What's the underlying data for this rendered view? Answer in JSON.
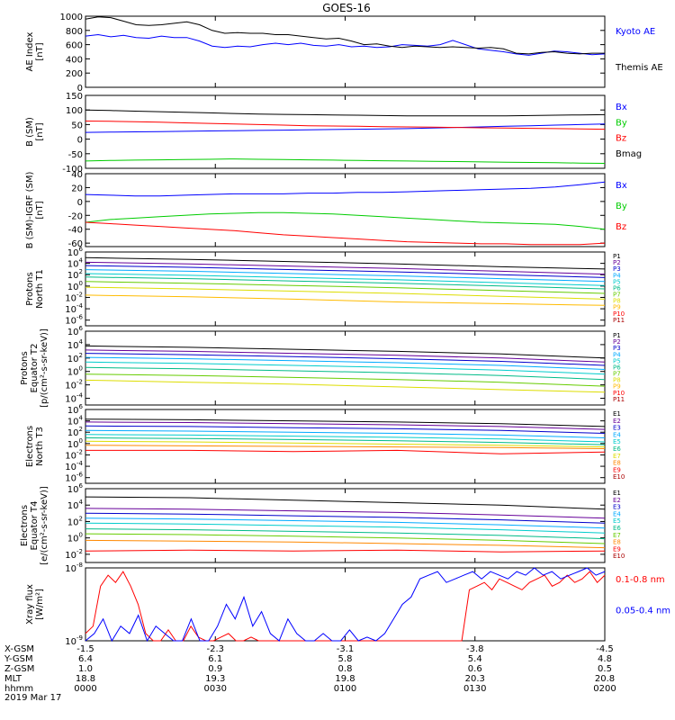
{
  "title": "GOES-16",
  "colors": {
    "black": "#000000",
    "blue": "#0000ff",
    "green": "#00cc00",
    "red": "#ff0000",
    "navy": "#000080",
    "purple": "#660099",
    "blue2": "#0000cc",
    "cyan1": "#00aaff",
    "cyan2": "#00cccc",
    "teal": "#00bb88",
    "lime": "#66cc00",
    "yellow": "#dddd00",
    "gold": "#ffbb00",
    "orange": "#ff8800",
    "darkred": "#aa0000"
  },
  "chart_data": [
    {
      "type": "line",
      "ylabel": "AE Index\n[nT]",
      "ylim": [
        0,
        1000
      ],
      "yticks": [
        "0",
        "200",
        "400",
        "600",
        "800",
        "1000"
      ],
      "series": [
        {
          "name": "Kyoto AE",
          "color": "#0000ff",
          "values": [
            720,
            740,
            710,
            730,
            700,
            690,
            720,
            700,
            700,
            650,
            580,
            560,
            580,
            570,
            600,
            620,
            600,
            620,
            590,
            580,
            600,
            570,
            580,
            560,
            570,
            600,
            590,
            580,
            600,
            660,
            600,
            540,
            520,
            500,
            470,
            450,
            480,
            510,
            500,
            480,
            460,
            470
          ]
        },
        {
          "name": "Themis AE",
          "color": "#000000",
          "values": [
            960,
            990,
            980,
            930,
            880,
            870,
            880,
            900,
            920,
            880,
            800,
            760,
            770,
            760,
            760,
            740,
            740,
            720,
            700,
            680,
            690,
            650,
            600,
            610,
            580,
            560,
            580,
            570,
            560,
            570,
            560,
            550,
            560,
            540,
            480,
            470,
            490,
            500,
            480,
            470,
            480,
            480
          ]
        }
      ]
    },
    {
      "type": "line",
      "ylabel": "B (SM)\n[nT]",
      "ylim": [
        -100,
        150
      ],
      "yticks": [
        "-100",
        "-50",
        "0",
        "50",
        "100",
        "150"
      ],
      "series": [
        {
          "name": "Bx",
          "color": "#0000ff",
          "values": [
            23,
            24,
            25,
            26,
            27,
            28,
            29,
            30,
            31,
            32,
            33,
            34,
            35,
            36,
            38,
            40,
            42,
            44,
            46,
            48,
            50,
            52
          ]
        },
        {
          "name": "By",
          "color": "#00cc00",
          "values": [
            -75,
            -73,
            -72,
            -71,
            -70,
            -69,
            -68,
            -69,
            -70,
            -71,
            -72,
            -73,
            -74,
            -75,
            -76,
            -77,
            -78,
            -79,
            -80,
            -81,
            -82,
            -83
          ]
        },
        {
          "name": "Bz",
          "color": "#ff0000",
          "values": [
            62,
            61,
            60,
            58,
            56,
            54,
            52,
            50,
            48,
            46,
            45,
            44,
            43,
            42,
            41,
            40,
            39,
            38,
            37,
            36,
            35,
            34
          ]
        },
        {
          "name": "Bmag",
          "color": "#000000",
          "values": [
            100,
            98,
            96,
            94,
            92,
            90,
            88,
            86,
            85,
            84,
            83,
            82,
            81,
            80,
            80,
            80,
            80,
            80,
            81,
            82,
            83,
            84
          ]
        }
      ]
    },
    {
      "type": "line",
      "ylabel": "B (SM)-IGRF (SM)\n[nT]",
      "ylim": [
        -65,
        40
      ],
      "yticks": [
        "-60",
        "-40",
        "-20",
        "0",
        "20",
        "40"
      ],
      "series": [
        {
          "name": "Bx",
          "color": "#0000ff",
          "values": [
            10,
            9,
            8,
            8,
            9,
            10,
            11,
            11,
            11,
            12,
            12,
            13,
            13,
            14,
            15,
            16,
            17,
            18,
            19,
            21,
            24,
            28
          ]
        },
        {
          "name": "By",
          "color": "#00cc00",
          "values": [
            -30,
            -26,
            -24,
            -22,
            -20,
            -18,
            -17,
            -16,
            -16,
            -17,
            -18,
            -20,
            -22,
            -24,
            -26,
            -28,
            -30,
            -31,
            -32,
            -33,
            -36,
            -40
          ]
        },
        {
          "name": "Bz",
          "color": "#ff0000",
          "values": [
            -30,
            -32,
            -34,
            -36,
            -38,
            -40,
            -42,
            -45,
            -48,
            -50,
            -52,
            -54,
            -56,
            -58,
            -59,
            -60,
            -61,
            -61,
            -62,
            -62,
            -62,
            -60
          ]
        }
      ]
    },
    {
      "type": "line",
      "ylabel": "Protons\nNorth T1",
      "yscale": "log",
      "ylim": [
        1e-07,
        1000000.0
      ],
      "yticks": [
        "10^6",
        "10^4",
        "10^2",
        "10^0",
        "10^-2",
        "10^-4",
        "10^-6"
      ],
      "series": [
        {
          "name": "P1",
          "color": "#000000",
          "values": [
            5.0,
            4.7,
            4.3,
            3.9,
            3.4,
            3.0
          ]
        },
        {
          "name": "P2",
          "color": "#660099",
          "values": [
            4.2,
            3.9,
            3.5,
            3.1,
            2.6,
            2.1
          ]
        },
        {
          "name": "P3",
          "color": "#0000cc",
          "values": [
            3.6,
            3.3,
            2.9,
            2.5,
            2.0,
            1.5
          ]
        },
        {
          "name": "P4",
          "color": "#00aaff",
          "values": [
            2.9,
            2.6,
            2.2,
            1.8,
            1.3,
            0.8
          ]
        },
        {
          "name": "P5",
          "color": "#00cccc",
          "values": [
            2.2,
            1.9,
            1.5,
            1.1,
            0.6,
            0.1
          ]
        },
        {
          "name": "P6",
          "color": "#00bb88",
          "values": [
            1.6,
            1.3,
            0.9,
            0.5,
            0.0,
            -0.5
          ]
        },
        {
          "name": "P7",
          "color": "#66cc00",
          "values": [
            0.8,
            0.5,
            0.1,
            -0.3,
            -0.8,
            -1.3
          ]
        },
        {
          "name": "P8",
          "color": "#dddd00",
          "values": [
            -0.2,
            -0.5,
            -0.9,
            -1.3,
            -1.8,
            -2.3
          ]
        },
        {
          "name": "P9",
          "color": "#ffbb00",
          "values": [
            -1.6,
            -1.9,
            -2.3,
            -2.8,
            -3.1,
            -3.4
          ]
        },
        {
          "name": "P10",
          "color": "#ff0000",
          "values": [
            null,
            null,
            null,
            null,
            null,
            null
          ]
        },
        {
          "name": "P11",
          "color": "#aa0000",
          "values": [
            null,
            null,
            null,
            null,
            null,
            null
          ]
        }
      ]
    },
    {
      "type": "line",
      "ylabel": "Protons\nEquator T2\n[p/(cm²-s-sr-keV)]",
      "yscale": "log",
      "ylim": [
        1e-05,
        1000000.0
      ],
      "yticks": [
        "10^6",
        "10^4",
        "10^2",
        "10^0",
        "10^-2",
        "10^-4"
      ],
      "series": [
        {
          "name": "P1",
          "color": "#000000",
          "values": [
            3.8,
            3.6,
            3.3,
            3.0,
            2.6,
            2.0
          ]
        },
        {
          "name": "P2",
          "color": "#660099",
          "values": [
            3.2,
            3.0,
            2.7,
            2.4,
            2.0,
            1.4
          ]
        },
        {
          "name": "P3",
          "color": "#0000cc",
          "values": [
            2.7,
            2.5,
            2.2,
            1.9,
            1.5,
            0.9
          ]
        },
        {
          "name": "P4",
          "color": "#00aaff",
          "values": [
            2.1,
            1.9,
            1.6,
            1.3,
            0.9,
            0.3
          ]
        },
        {
          "name": "P5",
          "color": "#00cccc",
          "values": [
            1.4,
            1.2,
            0.9,
            0.6,
            0.2,
            -0.4
          ]
        },
        {
          "name": "P6",
          "color": "#00bb88",
          "values": [
            0.6,
            0.4,
            0.1,
            -0.2,
            -0.6,
            -1.2
          ]
        },
        {
          "name": "P7",
          "color": "#66cc00",
          "values": [
            -0.4,
            -0.6,
            -0.9,
            -1.2,
            -1.6,
            -2.2
          ]
        },
        {
          "name": "P8",
          "color": "#dddd00",
          "values": [
            -1.3,
            -1.6,
            -1.9,
            -2.3,
            -2.7,
            -3.1
          ]
        },
        {
          "name": "P9",
          "color": "#ffbb00",
          "values": [
            null,
            null,
            null,
            null,
            null,
            null
          ]
        },
        {
          "name": "P10",
          "color": "#ff0000",
          "values": [
            null,
            null,
            null,
            null,
            null,
            null
          ]
        },
        {
          "name": "P11",
          "color": "#aa0000",
          "values": [
            null,
            null,
            null,
            null,
            null,
            null
          ]
        }
      ]
    },
    {
      "type": "line",
      "ylabel": "Electrons\nNorth T3",
      "yscale": "log",
      "ylim": [
        1e-07,
        1000000.0
      ],
      "yticks": [
        "10^6",
        "10^4",
        "10^2",
        "10^0",
        "10^-2",
        "10^-4",
        "10^-6"
      ],
      "series": [
        {
          "name": "E1",
          "color": "#000000",
          "values": [
            4.3,
            4.2,
            4.0,
            3.8,
            3.5,
            3.0
          ]
        },
        {
          "name": "E2",
          "color": "#660099",
          "values": [
            3.8,
            3.7,
            3.5,
            3.3,
            3.0,
            2.5
          ]
        },
        {
          "name": "E3",
          "color": "#0000cc",
          "values": [
            3.1,
            3.0,
            2.8,
            2.6,
            2.3,
            1.8
          ]
        },
        {
          "name": "E4",
          "color": "#00aaff",
          "values": [
            2.3,
            2.2,
            2.0,
            1.8,
            1.5,
            1.0
          ]
        },
        {
          "name": "E5",
          "color": "#00cccc",
          "values": [
            1.6,
            1.5,
            1.3,
            1.1,
            0.8,
            0.3
          ]
        },
        {
          "name": "E6",
          "color": "#00bb88",
          "values": [
            1.0,
            0.9,
            0.7,
            0.5,
            0.2,
            -0.2
          ]
        },
        {
          "name": "E7",
          "color": "#dddd00",
          "values": [
            0.4,
            0.3,
            0.1,
            -0.1,
            -0.3,
            -0.6
          ]
        },
        {
          "name": "E8",
          "color": "#ff8800",
          "values": [
            -0.3,
            -0.4,
            -0.5,
            -0.6,
            -0.7,
            -0.9
          ]
        },
        {
          "name": "E9",
          "color": "#ff0000",
          "values": [
            -1.2,
            -1.2,
            -1.4,
            -1.2,
            -1.8,
            -1.5
          ]
        },
        {
          "name": "E10",
          "color": "#aa0000",
          "values": [
            null,
            null,
            null,
            null,
            null,
            null
          ]
        }
      ]
    },
    {
      "type": "line",
      "ylabel": "Electrons\nEquator T4\n[e/(cm²-s-sr-keV)]",
      "yscale": "log",
      "ylim": [
        0.001,
        1000000.0
      ],
      "yticks": [
        "10^6",
        "10^4",
        "10^2",
        "10^0",
        "10^-2"
      ],
      "series": [
        {
          "name": "E1",
          "color": "#000000",
          "values": [
            5.0,
            4.9,
            4.6,
            4.3,
            4.0,
            3.5
          ]
        },
        {
          "name": "E2",
          "color": "#660099",
          "values": [
            3.6,
            3.5,
            3.3,
            3.1,
            2.8,
            2.4
          ]
        },
        {
          "name": "E3",
          "color": "#0000cc",
          "values": [
            3.0,
            2.9,
            2.7,
            2.5,
            2.2,
            1.8
          ]
        },
        {
          "name": "E4",
          "color": "#00aaff",
          "values": [
            2.4,
            2.3,
            2.1,
            1.9,
            1.6,
            1.2
          ]
        },
        {
          "name": "E5",
          "color": "#00cccc",
          "values": [
            1.8,
            1.7,
            1.5,
            1.3,
            1.0,
            0.6
          ]
        },
        {
          "name": "E6",
          "color": "#00bb88",
          "values": [
            1.1,
            1.0,
            0.8,
            0.6,
            0.3,
            -0.1
          ]
        },
        {
          "name": "E7",
          "color": "#66cc00",
          "values": [
            0.5,
            0.4,
            0.2,
            0.0,
            -0.3,
            -0.7
          ]
        },
        {
          "name": "E8",
          "color": "#ff8800",
          "values": [
            -0.3,
            -0.4,
            -0.5,
            -0.7,
            -0.9,
            -1.2
          ]
        },
        {
          "name": "E9",
          "color": "#ff0000",
          "values": [
            -1.6,
            -1.5,
            -1.6,
            -1.5,
            -1.7,
            -1.6
          ]
        },
        {
          "name": "E10",
          "color": "#aa0000",
          "values": [
            null,
            null,
            null,
            null,
            null,
            null
          ]
        }
      ]
    },
    {
      "type": "line",
      "ylabel": "Xray flux\n[W/m²]",
      "yscale": "log",
      "ylim": [
        1e-09,
        1e-08
      ],
      "yticks": [
        "10^-8",
        "10^-9"
      ],
      "series": [
        {
          "name": "0.1-0.8 nm",
          "color": "#ff0000",
          "values": [
            0.1,
            0.2,
            0.75,
            0.9,
            0.8,
            0.95,
            0.75,
            0.5,
            0.1,
            0.0,
            0.0,
            0.15,
            0.0,
            0.0,
            0.2,
            0.05,
            0.0,
            0.0,
            0.05,
            0.1,
            0.0,
            0.0,
            0.05,
            0.0,
            0.0,
            0.0,
            0.0,
            0.0,
            0.0,
            0.0,
            0.0,
            0.0,
            0.0,
            0.0,
            0.0,
            0.0,
            0.0,
            0.0,
            0.0,
            0.0,
            0.0,
            0.0,
            0.0,
            0.0,
            0.0,
            0.0,
            0.0,
            0.0,
            0.0,
            0.0,
            0.0,
            0.7,
            0.75,
            0.8,
            0.7,
            0.85,
            0.8,
            0.75,
            0.7,
            0.8,
            0.85,
            0.9,
            0.75,
            0.8,
            0.9,
            0.8,
            0.85,
            0.95,
            0.8,
            0.9
          ]
        },
        {
          "name": "0.05-0.4 nm",
          "color": "#0000ff",
          "values": [
            0.0,
            0.1,
            0.3,
            0.0,
            0.2,
            0.1,
            0.35,
            0.0,
            0.2,
            0.1,
            0.0,
            0.0,
            0.3,
            0.0,
            0.0,
            0.2,
            0.5,
            0.3,
            0.6,
            0.2,
            0.4,
            0.1,
            0.0,
            0.3,
            0.1,
            0.0,
            0.0,
            0.1,
            0.0,
            0.0,
            0.15,
            0.0,
            0.05,
            0.0,
            0.1,
            0.3,
            0.5,
            0.6,
            0.85,
            0.9,
            0.95,
            0.8,
            0.85,
            0.9,
            0.95,
            0.85,
            0.95,
            0.9,
            0.85,
            0.95,
            0.9,
            1.0,
            0.9,
            0.95,
            0.85,
            0.9,
            0.95,
            1.0,
            0.9,
            0.95
          ]
        }
      ]
    }
  ],
  "bottom_axis": {
    "row_labels": [
      "X-GSM",
      "Y-GSM",
      "Z-GSM",
      "MLT",
      "hhmm"
    ],
    "columns": [
      {
        "values": [
          "-1.5",
          "6.4",
          "1.0",
          "18.8",
          "0000"
        ]
      },
      {
        "values": [
          "-2.3",
          "6.1",
          "0.9",
          "19.3",
          "0030"
        ]
      },
      {
        "values": [
          "-3.1",
          "5.8",
          "0.8",
          "19.8",
          "0100"
        ]
      },
      {
        "values": [
          "-3.8",
          "5.4",
          "0.6",
          "20.3",
          "0130"
        ]
      },
      {
        "values": [
          "-4.5",
          "4.8",
          "0.5",
          "20.8",
          "0200"
        ]
      }
    ],
    "date": "2019 Mar 17"
  }
}
